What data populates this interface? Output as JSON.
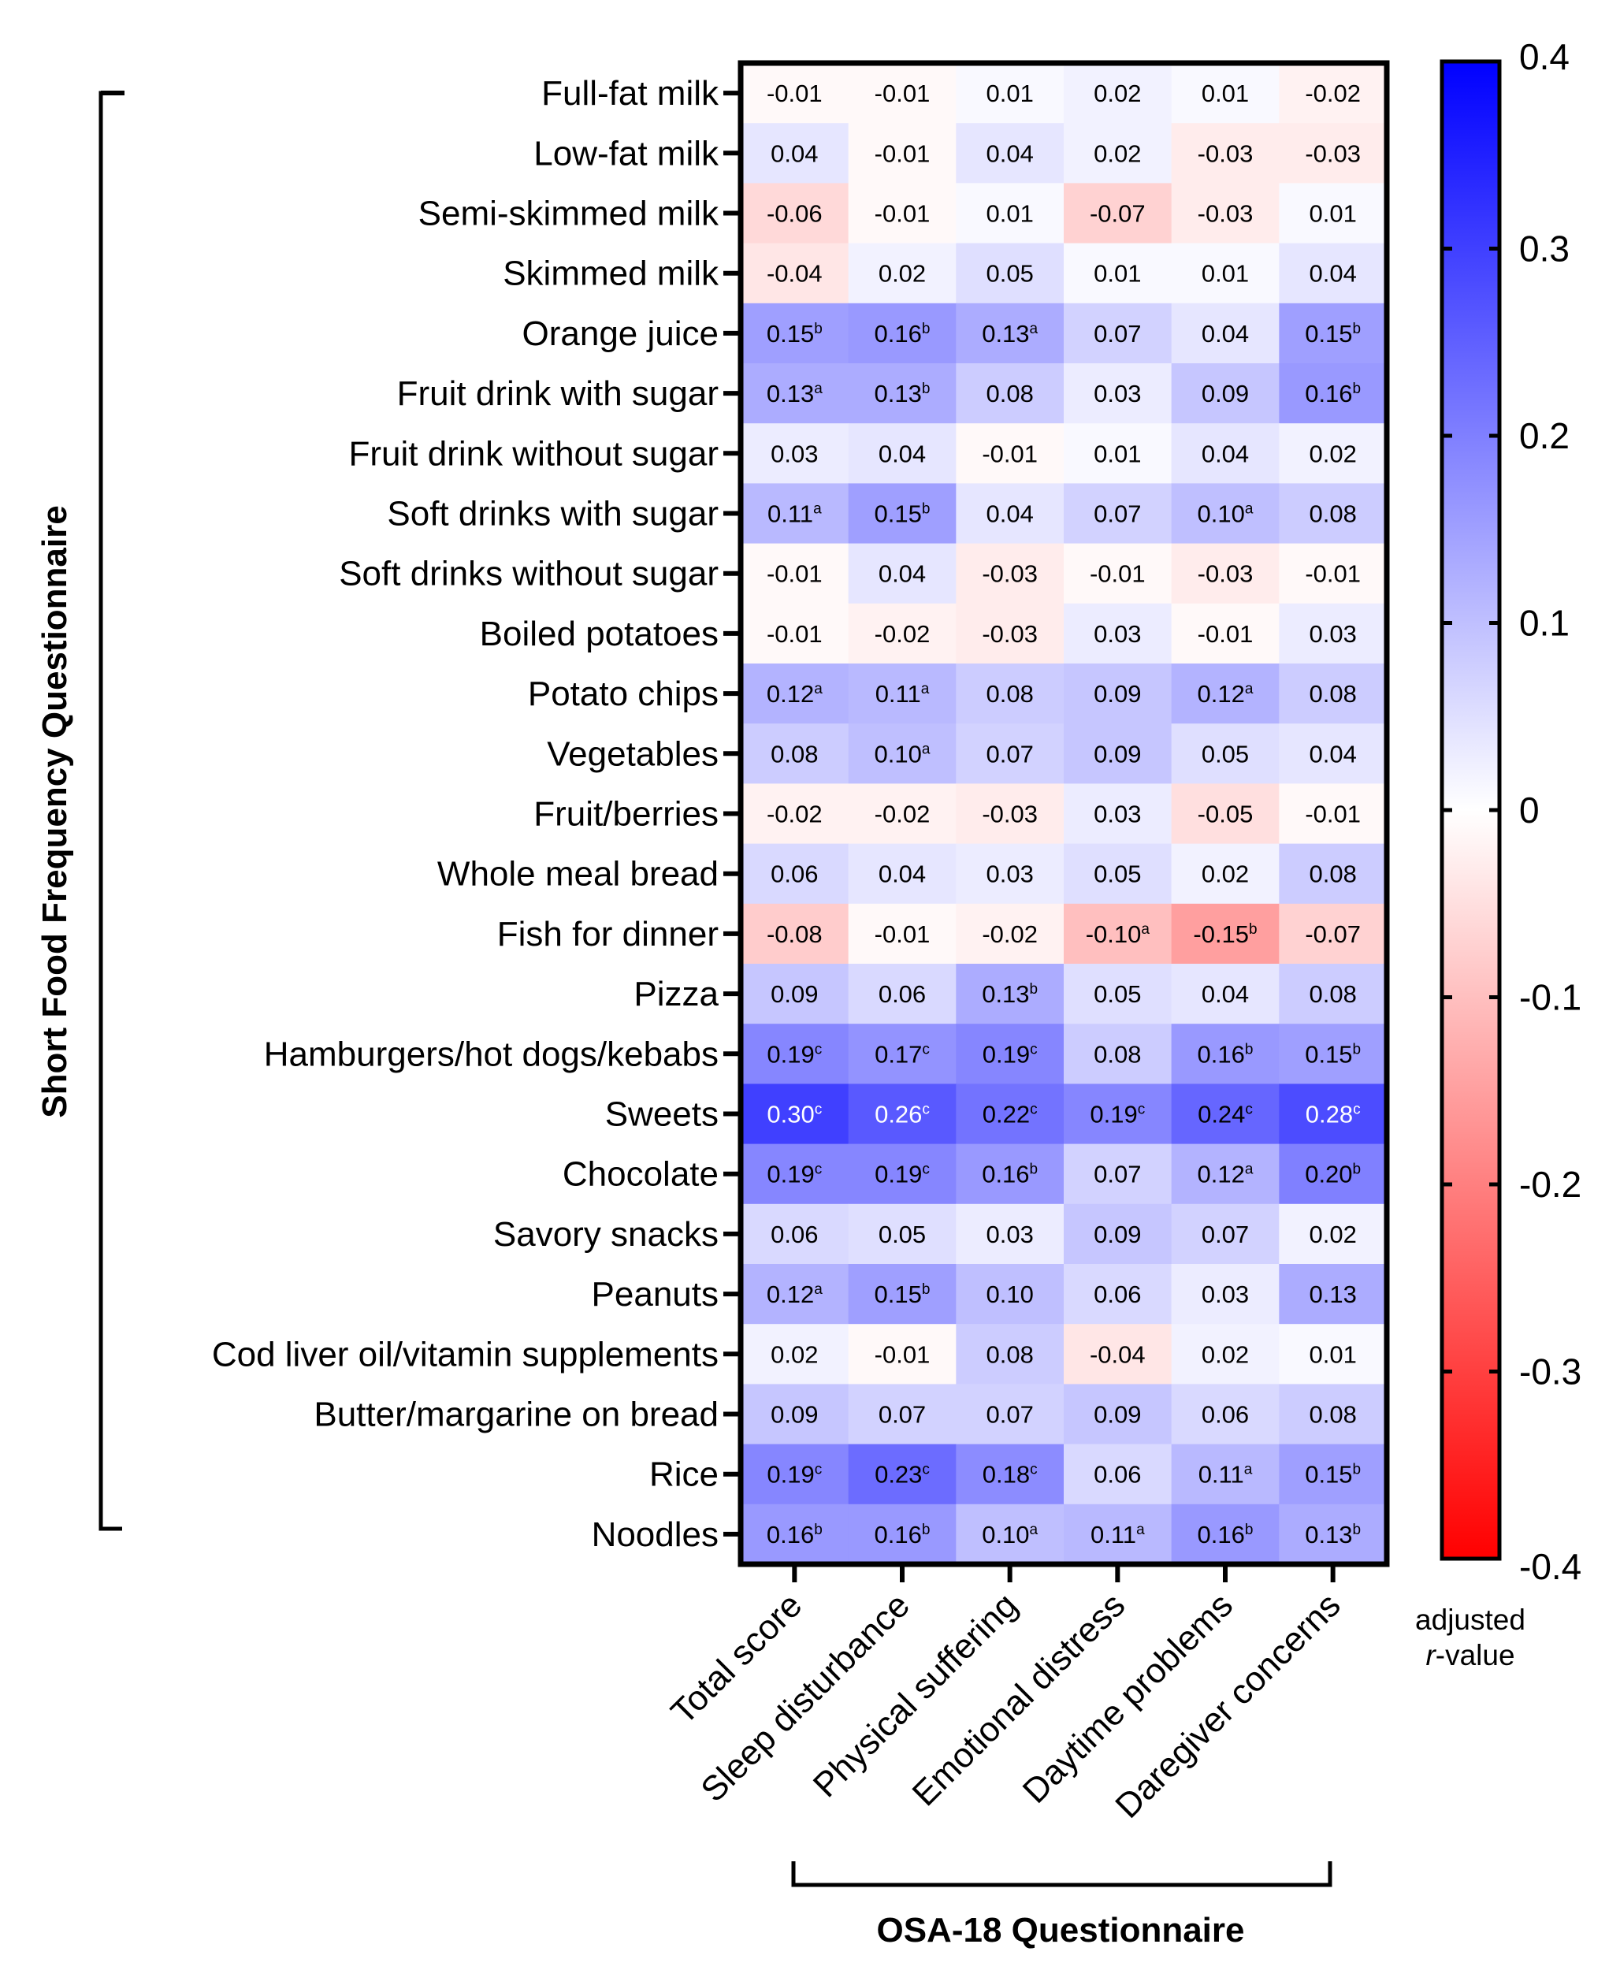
{
  "chart_data": {
    "type": "heatmap",
    "title": "",
    "ylabel": "Short Food Frequency Questionnaire",
    "xlabel": "OSA-18 Questionnaire",
    "colorbar": {
      "label_line1": "adjusted",
      "label_line2_italic": "r",
      "label_line2_rest": "-value",
      "range": [
        -0.4,
        0.4
      ],
      "ticks": [
        "0.4",
        "0.3",
        "0.2",
        "0.1",
        "0",
        "-0.1",
        "-0.2",
        "-0.3",
        "-0.4"
      ],
      "tick_values": [
        0.4,
        0.3,
        0.2,
        0.1,
        0,
        -0.1,
        -0.2,
        -0.3,
        -0.4
      ],
      "colors": {
        "max": "#0000ff",
        "mid": "#ffffff",
        "min": "#ff0000"
      },
      "placement": "right"
    },
    "columns": [
      "Total score",
      "Sleep disturbance",
      "Physical suffering",
      "Emotional distress",
      "Daytime problems",
      "Daregiver concerns"
    ],
    "rows": [
      "Full-fat milk",
      "Low-fat milk",
      "Semi-skimmed milk",
      "Skimmed milk",
      "Orange juice",
      "Fruit drink with sugar",
      "Fruit drink without sugar",
      "Soft drinks with sugar",
      "Soft drinks without sugar",
      "Boiled potatoes",
      "Potato chips",
      "Vegetables",
      "Fruit/berries",
      "Whole meal bread",
      "Fish for dinner",
      "Pizza",
      "Hamburgers/hot dogs/kebabs",
      "Sweets",
      "Chocolate",
      "Savory snacks",
      "Peanuts",
      "Cod liver oil/vitamin supplements",
      "Butter/margarine on bread",
      "Rice",
      "Noodles"
    ],
    "values": [
      [
        -0.01,
        -0.01,
        0.01,
        0.02,
        0.01,
        -0.02
      ],
      [
        0.04,
        -0.01,
        0.04,
        0.02,
        -0.03,
        -0.03
      ],
      [
        -0.06,
        -0.01,
        0.01,
        -0.07,
        -0.03,
        0.01
      ],
      [
        -0.04,
        0.02,
        0.05,
        0.01,
        0.01,
        0.04
      ],
      [
        0.15,
        0.16,
        0.13,
        0.07,
        0.04,
        0.15
      ],
      [
        0.13,
        0.13,
        0.08,
        0.03,
        0.09,
        0.16
      ],
      [
        0.03,
        0.04,
        -0.01,
        0.01,
        0.04,
        0.02
      ],
      [
        0.11,
        0.15,
        0.04,
        0.07,
        0.1,
        0.08
      ],
      [
        -0.01,
        0.04,
        -0.03,
        -0.01,
        -0.03,
        -0.01
      ],
      [
        -0.01,
        -0.02,
        -0.03,
        0.03,
        -0.01,
        0.03
      ],
      [
        0.12,
        0.11,
        0.08,
        0.09,
        0.12,
        0.08
      ],
      [
        0.08,
        0.1,
        0.07,
        0.09,
        0.05,
        0.04
      ],
      [
        -0.02,
        -0.02,
        -0.03,
        0.03,
        -0.05,
        -0.01
      ],
      [
        0.06,
        0.04,
        0.03,
        0.05,
        0.02,
        0.08
      ],
      [
        -0.08,
        -0.01,
        -0.02,
        -0.1,
        -0.15,
        -0.07
      ],
      [
        0.09,
        0.06,
        0.13,
        0.05,
        0.04,
        0.08
      ],
      [
        0.19,
        0.17,
        0.19,
        0.08,
        0.16,
        0.15
      ],
      [
        0.3,
        0.26,
        0.22,
        0.19,
        0.24,
        0.28
      ],
      [
        0.19,
        0.19,
        0.16,
        0.07,
        0.12,
        0.2
      ],
      [
        0.06,
        0.05,
        0.03,
        0.09,
        0.07,
        0.02
      ],
      [
        0.12,
        0.15,
        0.1,
        0.06,
        0.03,
        0.13
      ],
      [
        0.02,
        -0.01,
        0.08,
        -0.04,
        0.02,
        0.01
      ],
      [
        0.09,
        0.07,
        0.07,
        0.09,
        0.06,
        0.08
      ],
      [
        0.19,
        0.23,
        0.18,
        0.06,
        0.11,
        0.15
      ],
      [
        0.16,
        0.16,
        0.1,
        0.11,
        0.16,
        0.13
      ]
    ],
    "labels": [
      [
        "-0.01",
        "-0.01",
        "0.01",
        "0.02",
        "0.01",
        "-0.02"
      ],
      [
        "0.04",
        "-0.01",
        "0.04",
        "0.02",
        "-0.03",
        "-0.03"
      ],
      [
        "-0.06",
        "-0.01",
        "0.01",
        "-0.07",
        "-0.03",
        "0.01"
      ],
      [
        "-0.04",
        "0.02",
        "0.05",
        "0.01",
        "0.01",
        "0.04"
      ],
      [
        "0.15",
        "0.16",
        "0.13",
        "0.07",
        "0.04",
        "0.15"
      ],
      [
        "0.13",
        "0.13",
        "0.08",
        "0.03",
        "0.09",
        "0.16"
      ],
      [
        "0.03",
        "0.04",
        "-0.01",
        "0.01",
        "0.04",
        "0.02"
      ],
      [
        "0.11",
        "0.15",
        "0.04",
        "0.07",
        "0.10",
        "0.08"
      ],
      [
        "-0.01",
        "0.04",
        "-0.03",
        "-0.01",
        "-0.03",
        "-0.01"
      ],
      [
        "-0.01",
        "-0.02",
        "-0.03",
        "0.03",
        "-0.01",
        "0.03"
      ],
      [
        "0.12",
        "0.11",
        "0.08",
        "0.09",
        "0.12",
        "0.08"
      ],
      [
        "0.08",
        "0.10",
        "0.07",
        "0.09",
        "0.05",
        "0.04"
      ],
      [
        "-0.02",
        "-0.02",
        "-0.03",
        "0.03",
        "-0.05",
        "-0.01"
      ],
      [
        "0.06",
        "0.04",
        "0.03",
        "0.05",
        "0.02",
        "0.08"
      ],
      [
        "-0.08",
        "-0.01",
        "-0.02",
        "-0.10",
        "-0.15",
        "-0.07"
      ],
      [
        "0.09",
        "0.06",
        "0.13",
        "0.05",
        "0.04",
        "0.08"
      ],
      [
        "0.19",
        "0.17",
        "0.19",
        "0.08",
        "0.16",
        "0.15"
      ],
      [
        "0.30",
        "0.26",
        "0.22",
        "0.19",
        "0.24",
        "0.28"
      ],
      [
        "0.19",
        "0.19",
        "0.16",
        "0.07",
        "0.12",
        "0.20"
      ],
      [
        "0.06",
        "0.05",
        "0.03",
        "0.09",
        "0.07",
        "0.02"
      ],
      [
        "0.12",
        "0.15",
        "0.10",
        "0.06",
        "0.03",
        "0.13"
      ],
      [
        "0.02",
        "-0.01",
        "0.08",
        "-0.04",
        "0.02",
        "0.01"
      ],
      [
        "0.09",
        "0.07",
        "0.07",
        "0.09",
        "0.06",
        "0.08"
      ],
      [
        "0.19",
        "0.23",
        "0.18",
        "0.06",
        "0.11",
        "0.15"
      ],
      [
        "0.16",
        "0.16",
        "0.10",
        "0.11",
        "0.16",
        "0.13"
      ]
    ],
    "significance": [
      [
        "",
        "",
        "",
        "",
        "",
        ""
      ],
      [
        "",
        "",
        "",
        "",
        "",
        ""
      ],
      [
        "",
        "",
        "",
        "",
        "",
        ""
      ],
      [
        "",
        "",
        "",
        "",
        "",
        ""
      ],
      [
        "b",
        "b",
        "a",
        "",
        "",
        "b"
      ],
      [
        "a",
        "b",
        "",
        "",
        "",
        "b"
      ],
      [
        "",
        "",
        "",
        "",
        "",
        ""
      ],
      [
        "a",
        "b",
        "",
        "",
        "a",
        ""
      ],
      [
        "",
        "",
        "",
        "",
        "",
        ""
      ],
      [
        "",
        "",
        "",
        "",
        "",
        ""
      ],
      [
        "a",
        "a",
        "",
        "",
        "a",
        ""
      ],
      [
        "",
        "a",
        "",
        "",
        "",
        ""
      ],
      [
        "",
        "",
        "",
        "",
        "",
        ""
      ],
      [
        "",
        "",
        "",
        "",
        "",
        ""
      ],
      [
        "",
        "",
        "",
        "a",
        "b",
        ""
      ],
      [
        "",
        "",
        "b",
        "",
        "",
        ""
      ],
      [
        "c",
        "c",
        "c",
        "",
        "b",
        "b"
      ],
      [
        "c",
        "c",
        "c",
        "c",
        "c",
        "c"
      ],
      [
        "c",
        "c",
        "b",
        "",
        "a",
        "b"
      ],
      [
        "",
        "",
        "",
        "",
        "",
        ""
      ],
      [
        "a",
        "b",
        "",
        "",
        "",
        ""
      ],
      [
        "",
        "",
        "",
        "",
        "",
        ""
      ],
      [
        "",
        "",
        "",
        "",
        "",
        ""
      ],
      [
        "c",
        "c",
        "c",
        "",
        "a",
        "b"
      ],
      [
        "b",
        "b",
        "a",
        "a",
        "b",
        "b"
      ]
    ],
    "light_text_threshold": 0.25
  }
}
